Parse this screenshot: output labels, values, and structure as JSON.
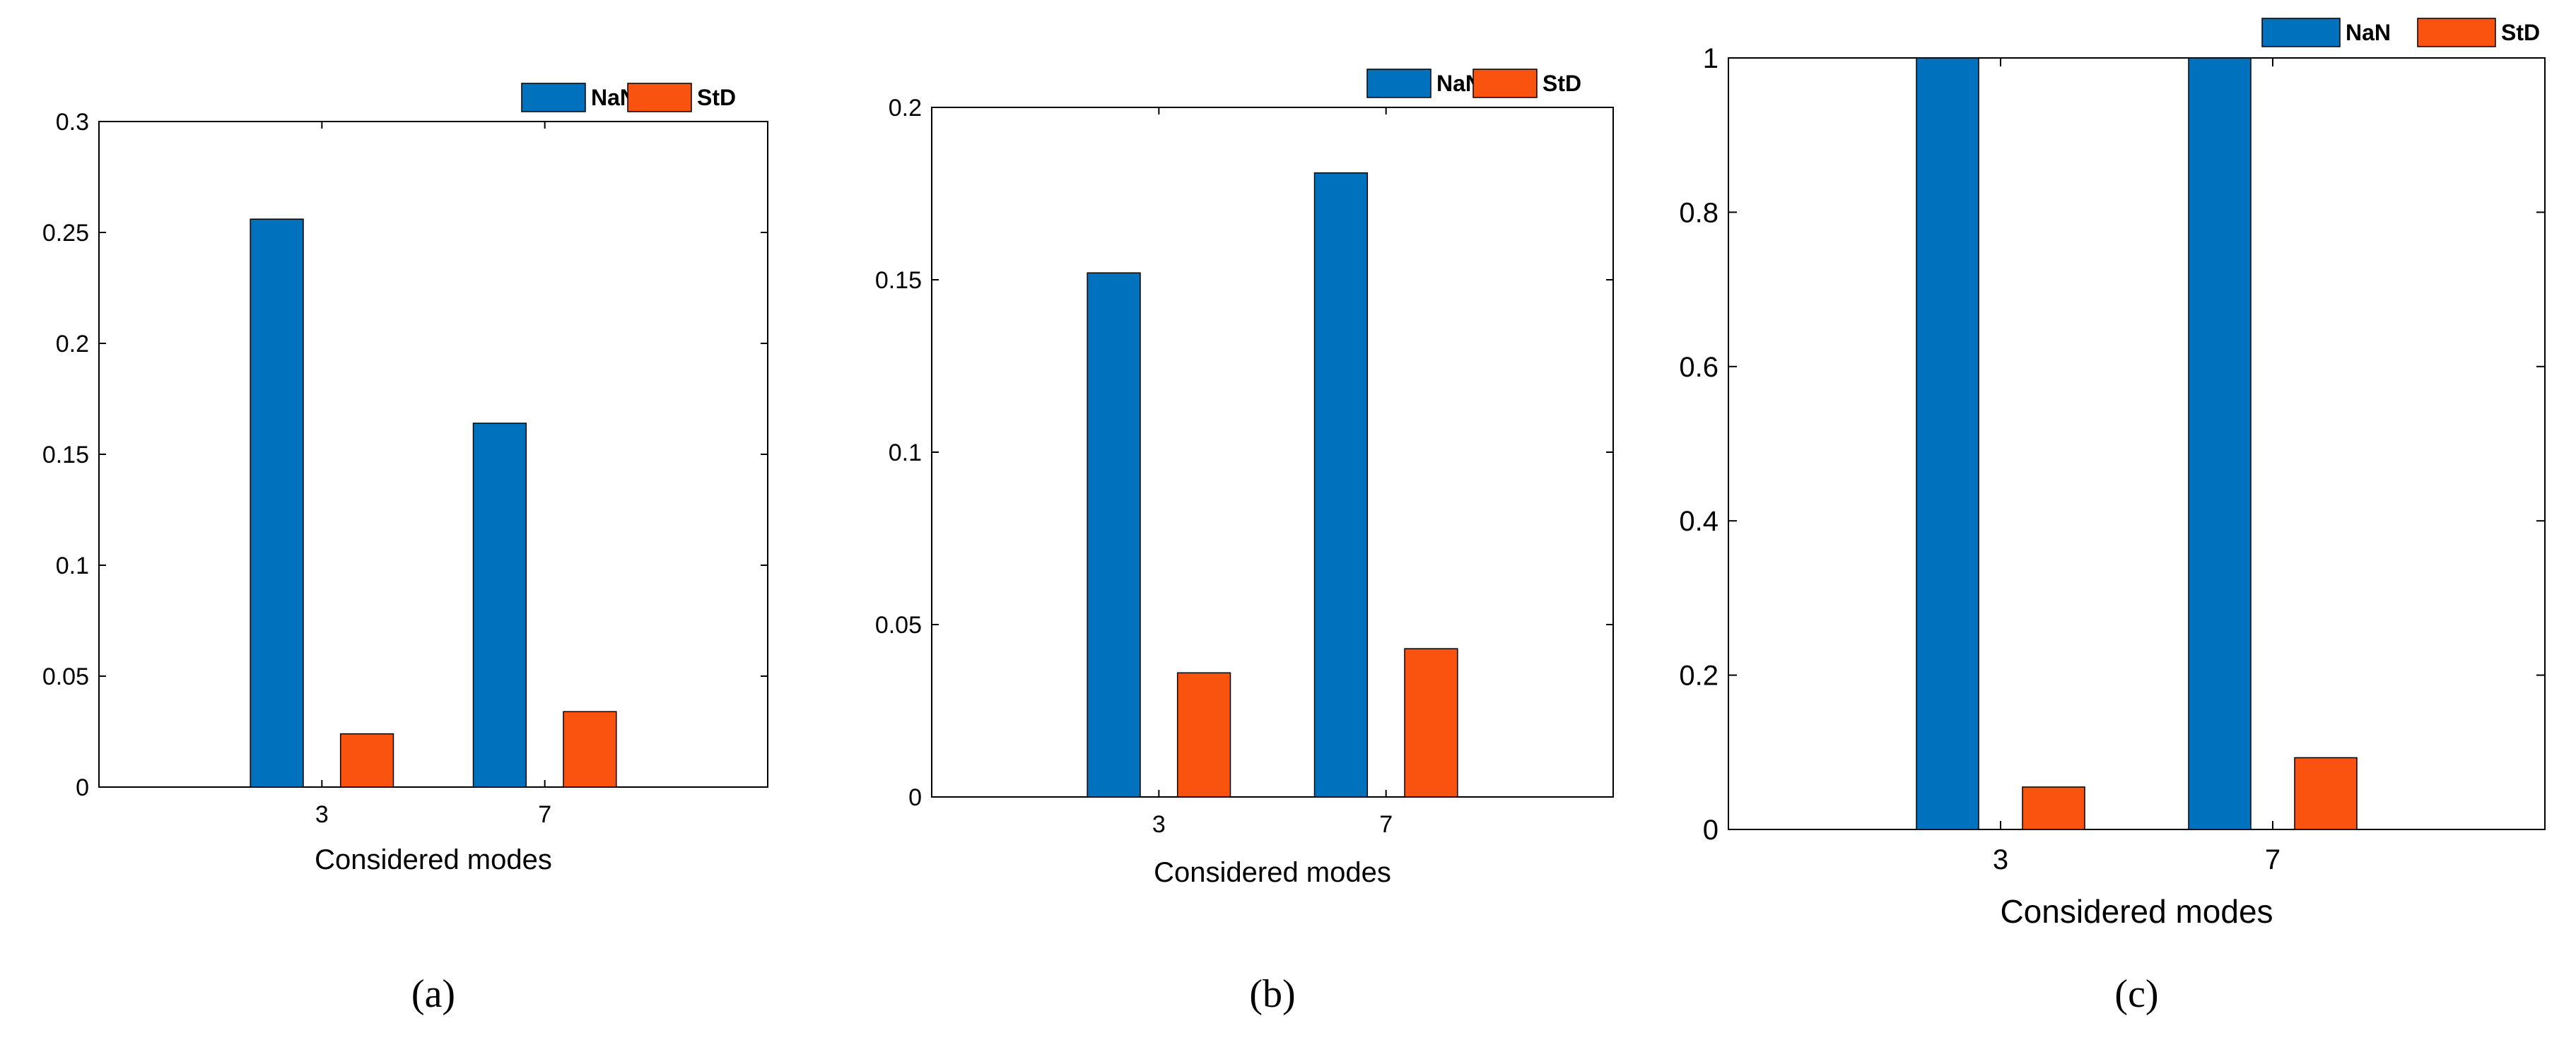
{
  "colors": {
    "NaN": "#0072bd",
    "StD": "#fa5310"
  },
  "chart_data": [
    {
      "type": "bar",
      "panel_label": "(a)",
      "categories": [
        "3",
        "7"
      ],
      "series": [
        {
          "name": "NaN",
          "values": [
            0.256,
            0.164
          ]
        },
        {
          "name": "StD",
          "values": [
            0.024,
            0.034
          ]
        }
      ],
      "xlabel": "Considered modes",
      "ylabel": "",
      "ylim": [
        0,
        0.3
      ],
      "yticks": [
        0,
        0.05,
        0.1,
        0.15,
        0.2,
        0.25,
        0.3
      ],
      "ytick_labels": [
        "0",
        "0.05",
        "0.1",
        "0.15",
        "0.2",
        "0.25",
        "0.3"
      ],
      "grid": false,
      "legend_position": "top-right"
    },
    {
      "type": "bar",
      "panel_label": "(b)",
      "categories": [
        "3",
        "7"
      ],
      "series": [
        {
          "name": "NaN",
          "values": [
            0.152,
            0.181
          ]
        },
        {
          "name": "StD",
          "values": [
            0.036,
            0.043
          ]
        }
      ],
      "xlabel": "Considered modes",
      "ylabel": "",
      "ylim": [
        0,
        0.2
      ],
      "yticks": [
        0,
        0.05,
        0.1,
        0.15,
        0.2
      ],
      "ytick_labels": [
        "0",
        "0.05",
        "0.1",
        "0.15",
        "0.2"
      ],
      "grid": false,
      "legend_position": "top-right"
    },
    {
      "type": "bar",
      "panel_label": "(c)",
      "categories": [
        "3",
        "7"
      ],
      "series": [
        {
          "name": "NaN",
          "values": [
            1.0,
            1.0
          ]
        },
        {
          "name": "StD",
          "values": [
            0.055,
            0.093
          ]
        }
      ],
      "xlabel": "Considered modes",
      "ylabel": "",
      "ylim": [
        0,
        1
      ],
      "yticks": [
        0,
        0.2,
        0.4,
        0.6,
        0.8,
        1
      ],
      "ytick_labels": [
        "0",
        "0.2",
        "0.4",
        "0.6",
        "0.8",
        "1"
      ],
      "grid": false,
      "legend_position": "top-right"
    }
  ]
}
